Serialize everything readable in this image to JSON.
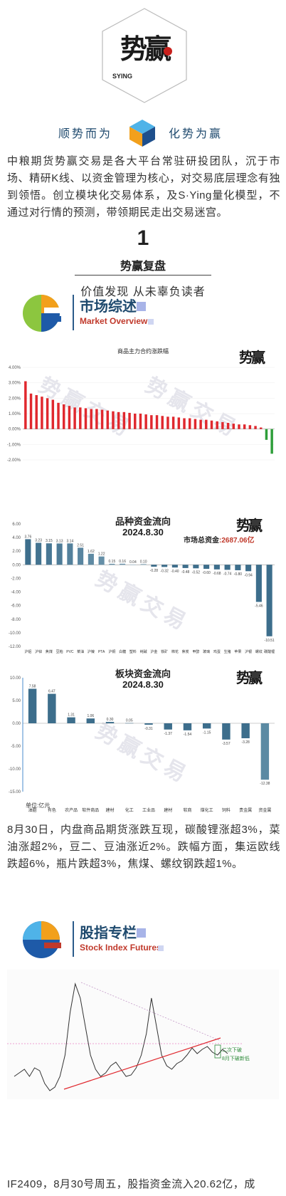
{
  "header": {
    "logo_text": "势赢",
    "logo_brand": "SYING",
    "slogan_left": "顺势而为",
    "slogan_right": "化势为赢",
    "cube_icon": "gradient-cube-icon"
  },
  "intro": "中粮期货势赢交易是各大平台常驻研投团队，沉于市场、精研K线、以资金管理为核心，对交易底层理念有独到领悟。创立模块化交易体系，及S·Ying量化模型，不通过对行情的预测，带领期民走出交易迷宫。",
  "section": {
    "number": "1",
    "title": "势赢复盘",
    "subtitle": "价值发现 从未辜负读者"
  },
  "market_overview": {
    "title_cn": "市场综述",
    "title_en": "Market Overview"
  },
  "chart_data": [
    {
      "type": "bar",
      "title": "商品主力合约涨跌幅",
      "y_ticks": [
        "4.00%",
        "3.00%",
        "2.00%",
        "1.00%",
        "0.00%",
        "-1.00%",
        "-2.00%"
      ],
      "values": [
        3.1,
        2.3,
        2.2,
        2.1,
        2.0,
        1.9,
        1.7,
        1.6,
        1.5,
        1.4,
        1.4,
        1.35,
        1.3,
        1.3,
        1.25,
        1.2,
        1.15,
        1.1,
        1.1,
        1.05,
        1.0,
        1.0,
        0.95,
        0.9,
        0.9,
        0.85,
        0.8,
        0.8,
        0.75,
        0.7,
        0.7,
        0.65,
        0.6,
        0.6,
        0.55,
        0.5,
        0.45,
        0.4,
        0.35,
        0.3,
        0.3,
        0.25,
        0.2,
        0.1,
        -0.7,
        -1.6
      ],
      "ylim": [
        -2,
        4
      ]
    },
    {
      "type": "bar",
      "title": "品种资金流向",
      "date": "2024.8.30",
      "total_label": "市场总资金",
      "total_value": ":2687.06亿",
      "y_ticks": [
        "6.00",
        "4.00",
        "2.00",
        "0.00",
        "-2.00",
        "-4.00",
        "-6.00",
        "-8.00",
        "-10.00",
        "-12.00"
      ],
      "categories": [
        "沪铝",
        "沪锌",
        "焦煤",
        "豆粕",
        "PVC",
        "菜油",
        "沪镍",
        "PTA",
        "沪铜",
        "白糖",
        "塑料",
        "纯碱",
        "沪金",
        "铁矿",
        "棉花",
        "焦炭",
        "甲醇",
        "玻璃",
        "鸡蛋",
        "生猪",
        "苹果",
        "沪银",
        "螺纹",
        "碳酸锂"
      ],
      "values": [
        3.76,
        3.23,
        3.15,
        3.13,
        3.14,
        2.51,
        1.62,
        1.22,
        0.15,
        0.16,
        0.04,
        0.1,
        -0.28,
        -0.32,
        -0.4,
        -0.48,
        -0.52,
        -0.6,
        -0.68,
        -0.74,
        -0.8,
        -0.94,
        -5.46,
        -10.51
      ],
      "ylim": [
        -12,
        6
      ]
    },
    {
      "type": "bar",
      "title": "板块资金流向",
      "date": "2024.8.30",
      "unit_label": "单位:亿元",
      "y_ticks": [
        "10.00",
        "5.00",
        "0.00",
        "-5.00",
        "-10.00",
        "-15.00"
      ],
      "categories": [
        "油脂",
        "有色",
        "农产品",
        "软件商品",
        "建材",
        "化工",
        "工业品",
        "建材",
        "软商",
        "煤化工",
        "饲料",
        "贵金属",
        "资金属"
      ],
      "values": [
        7.58,
        6.47,
        1.31,
        1.06,
        0.3,
        0.05,
        -0.31,
        -1.37,
        -1.54,
        -1.15,
        -3.57,
        -3.28,
        -12.38
      ],
      "ylim": [
        -15,
        10
      ]
    }
  ],
  "market_text": "8月30日，内盘商品期货涨跌互现，碳酸锂涨超3%，菜油涨超2%，豆二、豆油涨近2%。跌幅方面，集运欧线跌超6%，瓶片跌超3%，焦煤、螺纹钢跌超1%。",
  "stock_index": {
    "title_cn": "股指专栏",
    "title_en": "Stock Index Futures",
    "annotation_1": "二次下破",
    "annotation_2": "8月下破新低"
  },
  "bottom_text": "IF2409，8月30号周五，股指资金流入20.62亿，成",
  "watermark": "势赢交易",
  "colors": {
    "brand_blue": "#1f4a6e",
    "accent_red": "#c0392b",
    "bar_red": "#e0282e",
    "bar_green": "#2e9e3a",
    "bar_steel": "#3d6e8c"
  }
}
